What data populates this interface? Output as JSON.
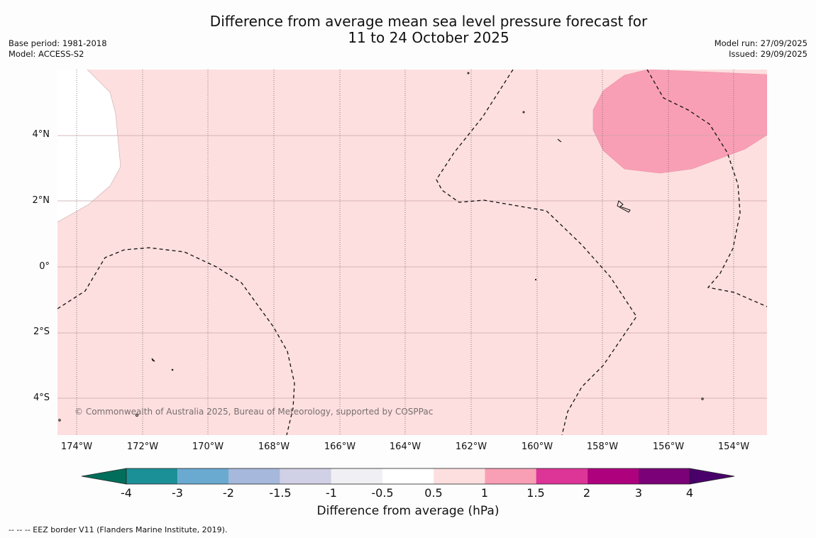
{
  "title": {
    "line1": "Difference from average mean sea level pressure forecast for",
    "line2": "11 to 24 October 2025"
  },
  "meta_left": {
    "base_period": "Base period: 1981-2018",
    "model": "Model: ACCESS-S2"
  },
  "meta_right": {
    "model_run": "Model run: 27/09/2025",
    "issued": "Issued: 29/09/2025"
  },
  "map": {
    "latitude_labels": [
      "4°N",
      "2°N",
      "0°",
      "2°S",
      "4°S"
    ],
    "longitude_labels": [
      "174°W",
      "172°W",
      "170°W",
      "168°W",
      "166°W",
      "164°W",
      "162°W",
      "160°W",
      "158°W",
      "156°W",
      "154°W"
    ],
    "copyright": "© Commonwealth of Australia 2025, Bureau of Meteorology, supported by COSPPac",
    "fill_colors": {
      "background_band": "#fddfdf",
      "positive_high": "#f99fb5",
      "near_zero": "#ffffff"
    }
  },
  "colorbar": {
    "ticks": [
      "-4",
      "-3",
      "-2",
      "-1.5",
      "-1",
      "-0.5",
      "0.5",
      "1",
      "1.5",
      "2",
      "3",
      "4"
    ],
    "colors": [
      "#006e5a",
      "#1b9097",
      "#6aaad0",
      "#a6b9dc",
      "#d0d0e6",
      "#f0eff3",
      "#ffffff",
      "#fddfdf",
      "#f99fb5",
      "#dd3497",
      "#ae017e",
      "#7a0177",
      "#49006a"
    ],
    "title": "Difference from average (hPa)"
  },
  "footer": "--  --  -- EEZ border V11 (Flanders Marine Institute, 2019)."
}
